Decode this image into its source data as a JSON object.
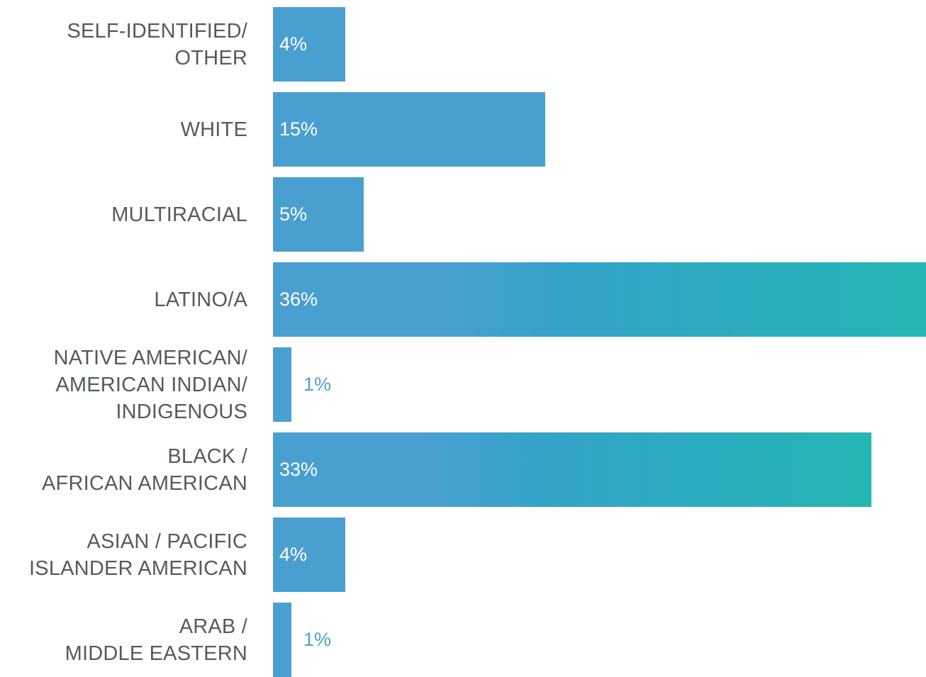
{
  "colors": {
    "bar_start": "#4a9fd1",
    "bar_mid": "#33a3c9",
    "bar_end": "#24b5b3",
    "label_text": "#555a5f",
    "value_inside": "#ffffff",
    "value_outside": "#4a9fd1"
  },
  "chart_data": {
    "type": "bar",
    "orientation": "horizontal",
    "title": "",
    "xlabel": "",
    "ylabel": "",
    "xlim": [
      0,
      36
    ],
    "grid": false,
    "legend": "none",
    "value_format": "percent",
    "categories": [
      "SELF-IDENTIFIED/\nOTHER",
      "WHITE",
      "MULTIRACIAL",
      "LATINO/A",
      "NATIVE AMERICAN/\nAMERICAN INDIAN/\nINDIGENOUS",
      "BLACK /\nAFRICAN AMERICAN",
      "ASIAN / PACIFIC\nISLANDER AMERICAN",
      "ARAB /\nMIDDLE EASTERN"
    ],
    "values": [
      4,
      15,
      5,
      36,
      1,
      33,
      4,
      1
    ],
    "value_labels": [
      "4%",
      "15%",
      "5%",
      "36%",
      "1%",
      "33%",
      "4%",
      "1%"
    ]
  }
}
